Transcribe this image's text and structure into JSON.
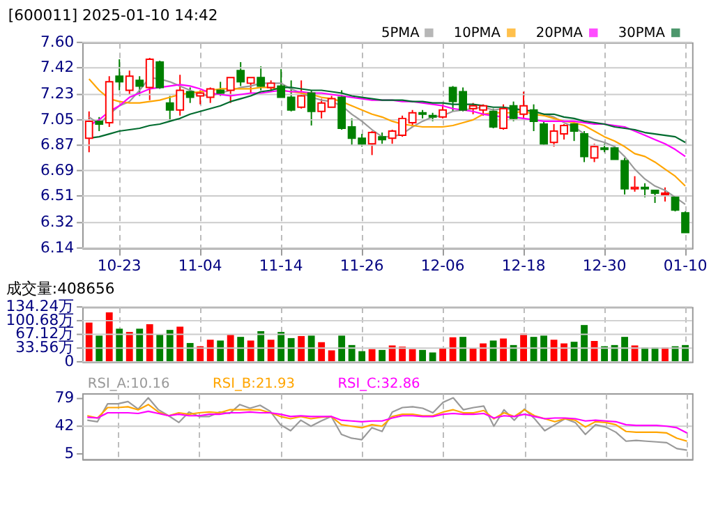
{
  "chart_data": [
    {
      "type": "candlestick",
      "title": "[600011] 2025-01-10 14:42",
      "categories": [
        null,
        null,
        null,
        "10-23",
        null,
        null,
        null,
        null,
        null,
        null,
        null,
        "11-04",
        null,
        null,
        null,
        null,
        null,
        null,
        null,
        "11-14",
        null,
        null,
        null,
        null,
        null,
        null,
        null,
        "11-26",
        null,
        null,
        null,
        null,
        null,
        null,
        null,
        "12-06",
        null,
        null,
        null,
        null,
        null,
        null,
        null,
        "12-18",
        null,
        null,
        null,
        null,
        null,
        null,
        null,
        "12-30",
        null,
        null,
        null,
        null,
        null,
        null,
        null,
        "01-10"
      ],
      "ohlc": [
        [
          6.92,
          7.11,
          6.82,
          7.04
        ],
        [
          7.04,
          7.07,
          6.97,
          7.02
        ],
        [
          7.03,
          7.36,
          7.0,
          7.32
        ],
        [
          7.36,
          7.48,
          7.26,
          7.32
        ],
        [
          7.26,
          7.4,
          7.23,
          7.36
        ],
        [
          7.33,
          7.36,
          7.22,
          7.29
        ],
        [
          7.28,
          7.49,
          7.19,
          7.48
        ],
        [
          7.46,
          7.47,
          7.27,
          7.28
        ],
        [
          7.17,
          7.22,
          7.04,
          7.12
        ],
        [
          7.12,
          7.37,
          7.08,
          7.26
        ],
        [
          7.25,
          7.28,
          7.17,
          7.21
        ],
        [
          7.22,
          7.26,
          7.16,
          7.24
        ],
        [
          7.21,
          7.28,
          7.17,
          7.27
        ],
        [
          7.26,
          7.32,
          7.22,
          7.24
        ],
        [
          7.26,
          7.35,
          7.17,
          7.35
        ],
        [
          7.4,
          7.46,
          7.29,
          7.32
        ],
        [
          7.31,
          7.35,
          7.24,
          7.35
        ],
        [
          7.35,
          7.43,
          7.26,
          7.29
        ],
        [
          7.28,
          7.33,
          7.25,
          7.31
        ],
        [
          7.29,
          7.41,
          7.21,
          7.21
        ],
        [
          7.21,
          7.33,
          7.11,
          7.12
        ],
        [
          7.14,
          7.33,
          7.13,
          7.22
        ],
        [
          7.24,
          7.26,
          7.01,
          7.11
        ],
        [
          7.11,
          7.2,
          7.06,
          7.17
        ],
        [
          7.14,
          7.22,
          7.14,
          7.2
        ],
        [
          7.21,
          7.26,
          6.98,
          6.99
        ],
        [
          7.0,
          7.06,
          6.87,
          6.92
        ],
        [
          6.92,
          6.95,
          6.86,
          6.88
        ],
        [
          6.88,
          6.97,
          6.8,
          6.96
        ],
        [
          6.93,
          6.96,
          6.88,
          6.91
        ],
        [
          6.92,
          6.98,
          6.88,
          6.97
        ],
        [
          6.94,
          7.08,
          6.93,
          7.06
        ],
        [
          7.03,
          7.12,
          7.0,
          7.1
        ],
        [
          7.1,
          7.12,
          7.06,
          7.09
        ],
        [
          7.08,
          7.1,
          7.04,
          7.07
        ],
        [
          7.07,
          7.16,
          7.06,
          7.12
        ],
        [
          7.28,
          7.29,
          7.11,
          7.18
        ],
        [
          7.25,
          7.28,
          7.11,
          7.12
        ],
        [
          7.13,
          7.17,
          7.09,
          7.15
        ],
        [
          7.12,
          7.16,
          7.08,
          7.15
        ],
        [
          7.11,
          7.13,
          6.99,
          7.0
        ],
        [
          6.99,
          7.16,
          6.98,
          7.13
        ],
        [
          7.15,
          7.18,
          7.04,
          7.06
        ],
        [
          7.09,
          7.25,
          7.06,
          7.15
        ],
        [
          7.12,
          7.16,
          6.97,
          7.04
        ],
        [
          7.02,
          7.04,
          6.87,
          6.88
        ],
        [
          6.89,
          7.02,
          6.86,
          6.97
        ],
        [
          6.95,
          7.02,
          6.91,
          7.01
        ],
        [
          7.02,
          7.04,
          6.9,
          6.97
        ],
        [
          6.95,
          6.97,
          6.75,
          6.79
        ],
        [
          6.78,
          6.88,
          6.75,
          6.86
        ],
        [
          6.85,
          6.88,
          6.82,
          6.84
        ],
        [
          6.85,
          6.87,
          6.77,
          6.77
        ],
        [
          6.76,
          6.78,
          6.52,
          6.56
        ],
        [
          6.56,
          6.65,
          6.54,
          6.57
        ],
        [
          6.57,
          6.6,
          6.5,
          6.56
        ],
        [
          6.55,
          6.55,
          6.46,
          6.53
        ],
        [
          6.52,
          6.57,
          6.47,
          6.53
        ],
        [
          6.5,
          6.5,
          6.4,
          6.41
        ],
        [
          6.39,
          6.4,
          6.25,
          6.25
        ]
      ],
      "colors": [
        "#ff0000",
        "#008000",
        "#ff0000",
        "#008000",
        "#ff0000",
        "#008000",
        "#ff0000",
        "#008000",
        "#008000",
        "#ff0000",
        "#008000",
        "#ff0000",
        "#ff0000",
        "#008000",
        "#ff0000",
        "#008000",
        "#ff0000",
        "#008000",
        "#ff0000",
        "#008000",
        "#008000",
        "#ff0000",
        "#008000",
        "#ff0000",
        "#ff0000",
        "#008000",
        "#008000",
        "#008000",
        "#ff0000",
        "#008000",
        "#ff0000",
        "#ff0000",
        "#ff0000",
        "#008000",
        "#008000",
        "#ff0000",
        "#008000",
        "#008000",
        "#ff0000",
        "#ff0000",
        "#008000",
        "#ff0000",
        "#008000",
        "#ff0000",
        "#008000",
        "#008000",
        "#ff0000",
        "#ff0000",
        "#008000",
        "#008000",
        "#ff0000",
        "#008000",
        "#008000",
        "#008000",
        "#ff0000",
        "#008000",
        "#008000",
        "#ff0000",
        "#008000",
        "#008000"
      ],
      "series": [
        {
          "type": "line",
          "name": "5PMA",
          "color": "#999999",
          "values": [
            7.07,
            7.02,
            7.09,
            7.15,
            7.18,
            7.26,
            7.35,
            7.34,
            7.32,
            7.29,
            7.26,
            7.23,
            7.22,
            7.24,
            7.26,
            7.28,
            7.29,
            7.31,
            7.31,
            7.31,
            7.27,
            7.24,
            7.21,
            7.19,
            7.18,
            7.15,
            7.09,
            7.04,
            6.98,
            6.93,
            6.93,
            6.95,
            7.0,
            7.04,
            7.07,
            7.08,
            7.11,
            7.12,
            7.13,
            7.14,
            7.12,
            7.13,
            7.12,
            7.12,
            7.11,
            7.09,
            7.07,
            7.03,
            7.0,
            6.95,
            6.91,
            6.89,
            6.86,
            6.79,
            6.7,
            6.63,
            6.58,
            6.55,
            6.5,
            6.45
          ]
        },
        {
          "type": "line",
          "name": "10PMA",
          "color": "#ffa500",
          "values": [
            7.34,
            7.26,
            7.2,
            7.18,
            7.17,
            7.17,
            7.18,
            7.19,
            7.21,
            7.23,
            7.24,
            7.25,
            7.26,
            7.27,
            7.27,
            7.27,
            7.27,
            7.28,
            7.28,
            7.26,
            7.25,
            7.24,
            7.23,
            7.21,
            7.2,
            7.18,
            7.15,
            7.12,
            7.09,
            7.07,
            7.04,
            7.02,
            7.01,
            7.0,
            7.0,
            7.0,
            7.01,
            7.03,
            7.05,
            7.09,
            7.1,
            7.1,
            7.1,
            7.11,
            7.09,
            7.08,
            7.06,
            7.04,
            7.03,
            7.01,
            6.97,
            6.93,
            6.9,
            6.86,
            6.81,
            6.79,
            6.75,
            6.7,
            6.65,
            6.58
          ]
        },
        {
          "type": "line",
          "name": "20PMA",
          "color": "#ff00ff",
          "values": [
            7.01,
            7.05,
            7.11,
            7.15,
            7.21,
            7.24,
            7.27,
            7.28,
            7.29,
            7.3,
            7.29,
            7.27,
            7.24,
            7.23,
            7.22,
            7.23,
            7.24,
            7.24,
            7.25,
            7.26,
            7.25,
            7.25,
            7.24,
            7.24,
            7.23,
            7.22,
            7.21,
            7.2,
            7.19,
            7.19,
            7.19,
            7.18,
            7.18,
            7.17,
            7.16,
            7.15,
            7.13,
            7.12,
            7.11,
            7.09,
            7.08,
            7.07,
            7.07,
            7.06,
            7.05,
            7.04,
            7.04,
            7.04,
            7.04,
            7.03,
            7.02,
            7.02,
            7.01,
            7.0,
            6.97,
            6.94,
            6.91,
            6.88,
            6.84,
            6.79
          ]
        },
        {
          "type": "line",
          "name": "30PMA",
          "color": "#006b2e",
          "values": [
            6.92,
            6.93,
            6.95,
            6.97,
            6.98,
            6.99,
            7.01,
            7.02,
            7.04,
            7.06,
            7.09,
            7.11,
            7.13,
            7.15,
            7.18,
            7.2,
            7.22,
            7.25,
            7.26,
            7.28,
            7.28,
            7.27,
            7.26,
            7.26,
            7.25,
            7.24,
            7.22,
            7.21,
            7.2,
            7.19,
            7.19,
            7.19,
            7.18,
            7.18,
            7.17,
            7.17,
            7.16,
            7.16,
            7.16,
            7.15,
            7.14,
            7.14,
            7.13,
            7.12,
            7.11,
            7.09,
            7.09,
            7.07,
            7.06,
            7.04,
            7.03,
            7.02,
            7.0,
            6.99,
            6.98,
            6.96,
            6.95,
            6.94,
            6.93,
            6.89
          ]
        }
      ],
      "ylim": [
        6.14,
        7.6
      ],
      "yticks": [
        {
          "value": 7.6,
          "label": "7.60"
        },
        {
          "value": 7.42,
          "label": "7.42"
        },
        {
          "value": 7.23,
          "label": "7.23"
        },
        {
          "value": 7.05,
          "label": "7.05"
        },
        {
          "value": 6.87,
          "label": "6.87"
        },
        {
          "value": 6.69,
          "label": "6.69"
        },
        {
          "value": 6.51,
          "label": "6.51"
        },
        {
          "value": 6.32,
          "label": "6.32"
        },
        {
          "value": 6.14,
          "label": "6.14"
        }
      ],
      "grid": true,
      "legend": "top right"
    },
    {
      "type": "bar",
      "title": "成交量:408656",
      "categories": [
        null,
        null,
        null,
        null,
        null,
        null,
        null,
        null,
        null,
        null,
        null,
        null,
        null,
        null,
        null,
        null,
        null,
        null,
        null,
        null,
        null,
        null,
        null,
        null,
        null,
        null,
        null,
        null,
        null,
        null,
        null,
        null,
        null,
        null,
        null,
        null,
        null,
        null,
        null,
        null,
        null,
        null,
        null,
        null,
        null,
        null,
        null,
        null,
        null,
        null,
        null,
        null,
        null,
        null,
        null,
        null,
        null,
        null,
        null,
        null
      ],
      "values": [
        96,
        64,
        121,
        81,
        73,
        81,
        92,
        67,
        78,
        86,
        46,
        38,
        54,
        52,
        66,
        61,
        52,
        75,
        54,
        73,
        58,
        63,
        64,
        48,
        28,
        64,
        41,
        26,
        31,
        29,
        40,
        37,
        31,
        29,
        23,
        34,
        60,
        61,
        34,
        45,
        52,
        57,
        41,
        69,
        61,
        64,
        54,
        45,
        49,
        90,
        51,
        38,
        41,
        61,
        40,
        35,
        35,
        35,
        38,
        41
      ],
      "colors": [
        "#ff0000",
        "#008000",
        "#ff0000",
        "#008000",
        "#ff0000",
        "#008000",
        "#ff0000",
        "#008000",
        "#008000",
        "#ff0000",
        "#008000",
        "#ff0000",
        "#ff0000",
        "#008000",
        "#ff0000",
        "#008000",
        "#ff0000",
        "#008000",
        "#ff0000",
        "#008000",
        "#008000",
        "#ff0000",
        "#008000",
        "#ff0000",
        "#ff0000",
        "#008000",
        "#008000",
        "#008000",
        "#ff0000",
        "#008000",
        "#ff0000",
        "#ff0000",
        "#ff0000",
        "#008000",
        "#008000",
        "#ff0000",
        "#ff0000",
        "#008000",
        "#ff0000",
        "#ff0000",
        "#008000",
        "#ff0000",
        "#008000",
        "#ff0000",
        "#008000",
        "#008000",
        "#ff0000",
        "#ff0000",
        "#008000",
        "#008000",
        "#ff0000",
        "#008000",
        "#008000",
        "#008000",
        "#ff0000",
        "#008000",
        "#008000",
        "#ff0000",
        "#008000",
        "#008000"
      ],
      "ylim": [
        0,
        134.24
      ],
      "yticks": [
        {
          "value": 134.24,
          "label": "134.24万"
        },
        {
          "value": 100.68,
          "label": "100.68万"
        },
        {
          "value": 67.12,
          "label": "67.12万"
        },
        {
          "value": 33.56,
          "label": "33.56万"
        },
        0
      ],
      "grid": true,
      "tick_labels": "y"
    },
    {
      "type": "line",
      "categories": [
        null,
        null,
        null,
        null,
        null,
        null,
        null,
        null,
        null,
        null,
        null,
        null,
        null,
        null,
        null,
        null,
        null,
        null,
        null,
        null,
        null,
        null,
        null,
        null,
        null,
        null,
        null,
        null,
        null,
        null,
        null,
        null,
        null,
        null,
        null,
        null,
        null,
        null,
        null,
        null,
        null,
        null,
        null,
        null,
        null,
        null,
        null,
        null,
        null,
        null,
        null,
        null,
        null,
        null,
        null,
        null,
        null,
        null,
        null,
        null
      ],
      "series": [
        {
          "name": "RSI_A:10.16",
          "color": "#999999",
          "values": [
            50,
            48,
            72,
            72,
            75,
            65,
            80,
            64,
            56,
            47,
            61,
            55,
            55,
            61,
            59,
            71,
            66,
            70,
            62,
            44,
            36,
            50,
            42,
            49,
            55,
            31,
            26,
            24,
            40,
            35,
            61,
            67,
            68,
            66,
            60,
            74,
            80,
            64,
            67,
            69,
            42,
            64,
            50,
            65,
            52,
            36,
            44,
            52,
            47,
            31,
            44,
            41,
            34,
            22,
            23,
            22,
            21,
            20,
            12,
            10
          ]
        },
        {
          "name": "RSI_B:21.93",
          "color": "#ffa500",
          "values": [
            56,
            53,
            67,
            67,
            68,
            64,
            71,
            61,
            56,
            60,
            58,
            60,
            61,
            60,
            64,
            64,
            64,
            64,
            60,
            55,
            52,
            55,
            52,
            54,
            55,
            44,
            42,
            40,
            44,
            42,
            55,
            58,
            58,
            56,
            56,
            61,
            64,
            60,
            60,
            63,
            52,
            60,
            55,
            64,
            56,
            52,
            48,
            52,
            50,
            41,
            48,
            47,
            44,
            35,
            34,
            34,
            34,
            33,
            26,
            22
          ]
        },
        {
          "name": "RSI_C:32.86",
          "color": "#ff00ff",
          "values": [
            54,
            53,
            60,
            60,
            60,
            59,
            62,
            59,
            56,
            58,
            56,
            56,
            58,
            58,
            60,
            60,
            61,
            60,
            60,
            58,
            55,
            56,
            55,
            55,
            55,
            50,
            49,
            48,
            49,
            49,
            53,
            56,
            56,
            55,
            55,
            58,
            59,
            58,
            58,
            59,
            53,
            56,
            55,
            58,
            55,
            52,
            53,
            53,
            52,
            49,
            50,
            49,
            48,
            44,
            43,
            43,
            43,
            42,
            40,
            33
          ]
        }
      ],
      "ylim": [
        -2,
        86
      ],
      "yticks": [
        79,
        42,
        5
      ],
      "grid": "x",
      "ref_lines": [
        {
          "axis": "y",
          "value": 42
        }
      ],
      "legend": "top left",
      "tick_labels": "y"
    }
  ]
}
